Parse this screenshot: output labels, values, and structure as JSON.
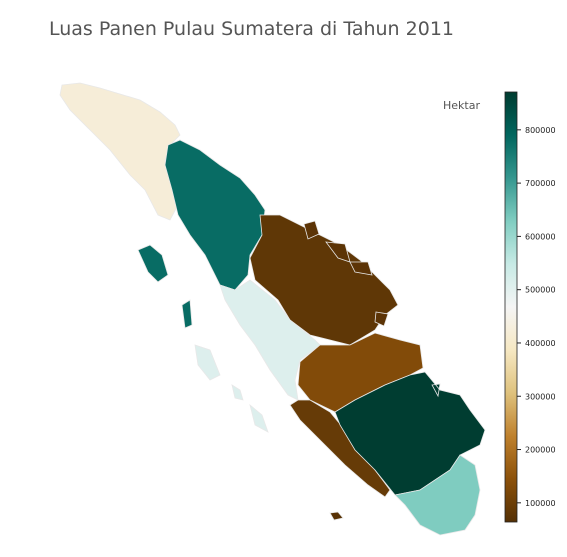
{
  "chart_data": {
    "type": "choropleth",
    "title": "Luas Panen Pulau Sumatera di Tahun 2011",
    "colorbar_label": "Hektar",
    "colorscale": [
      "#543005",
      "#8c510a",
      "#bf812d",
      "#dfc27d",
      "#f6e8c3",
      "#f5f5f5",
      "#c7eae5",
      "#80cdc1",
      "#35978f",
      "#01665e",
      "#003c30"
    ],
    "clim": [
      64000,
      871000
    ],
    "ticks": [
      100000,
      200000,
      300000,
      400000,
      500000,
      600000,
      700000,
      800000
    ],
    "regions": [
      {
        "value": 420000
      },
      {
        "value": 780000
      },
      {
        "value": 80000
      },
      {
        "value": 75000
      },
      {
        "value": 510000
      },
      {
        "value": 130000
      },
      {
        "value": 90000
      },
      {
        "value": 870000
      },
      {
        "value": 630000
      },
      {
        "value": 70000
      }
    ]
  }
}
